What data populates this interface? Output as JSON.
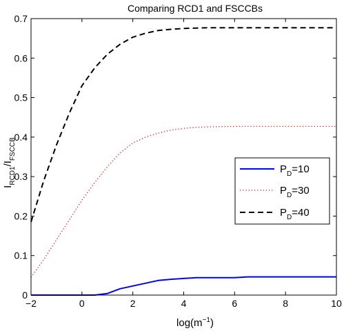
{
  "chart_data": {
    "type": "line",
    "title": "Comparing RCD1 and FSCCBs",
    "xlabel": {
      "main": "log(m",
      "sup": "−1",
      "close": ")"
    },
    "ylabel": {
      "p1": "I",
      "s1": "RCD1",
      "p2": "/I",
      "s2": "FSCCB"
    },
    "xlim": [
      -2,
      10
    ],
    "ylim": [
      0,
      0.7
    ],
    "xticks": [
      -2,
      0,
      2,
      4,
      6,
      8,
      10
    ],
    "yticks": [
      0,
      0.1,
      0.2,
      0.3,
      0.4,
      0.5,
      0.6,
      0.7
    ],
    "xtick_labels": [
      "−2",
      "0",
      "2",
      "4",
      "6",
      "8",
      "10"
    ],
    "ytick_labels": [
      "0",
      "0.1",
      "0.2",
      "0.3",
      "0.4",
      "0.5",
      "0.6",
      "0.7"
    ],
    "legend_position": "center-right",
    "grid": false,
    "series": [
      {
        "name": {
          "main": "P",
          "sub": "D",
          "rest": "=10"
        },
        "color": "#0000ff",
        "style": "solid",
        "x": [
          -2,
          0,
          0.5,
          1,
          1.5,
          2,
          2.5,
          3,
          3.5,
          4,
          4.5,
          5,
          5.5,
          6,
          6.5,
          7,
          8,
          9,
          10
        ],
        "y": [
          0,
          0,
          0,
          0.004,
          0.016,
          0.023,
          0.03,
          0.037,
          0.04,
          0.042,
          0.044,
          0.044,
          0.044,
          0.044,
          0.046,
          0.046,
          0.046,
          0.046,
          0.046
        ]
      },
      {
        "name": {
          "main": "P",
          "sub": "D",
          "rest": "=30"
        },
        "color": "#ff0000",
        "style": "dotted",
        "x": [
          -2,
          -1.5,
          -1,
          -0.5,
          0,
          0.5,
          1,
          1.5,
          2,
          2.5,
          3,
          3.5,
          4,
          4.5,
          5,
          6,
          7,
          8,
          9,
          10
        ],
        "y": [
          0.045,
          0.09,
          0.14,
          0.19,
          0.24,
          0.285,
          0.325,
          0.36,
          0.385,
          0.4,
          0.41,
          0.418,
          0.422,
          0.425,
          0.426,
          0.427,
          0.427,
          0.427,
          0.427,
          0.427
        ]
      },
      {
        "name": {
          "main": "P",
          "sub": "D",
          "rest": "=40"
        },
        "color": "#000000",
        "style": "dashed",
        "x": [
          -2,
          -1.5,
          -1,
          -0.5,
          0,
          0.5,
          1,
          1.5,
          2,
          2.5,
          3,
          3.5,
          4,
          4.5,
          5,
          6,
          7,
          8,
          9,
          10
        ],
        "y": [
          0.185,
          0.29,
          0.38,
          0.46,
          0.53,
          0.575,
          0.61,
          0.635,
          0.653,
          0.663,
          0.67,
          0.673,
          0.675,
          0.676,
          0.677,
          0.677,
          0.677,
          0.677,
          0.677,
          0.677
        ]
      }
    ]
  }
}
